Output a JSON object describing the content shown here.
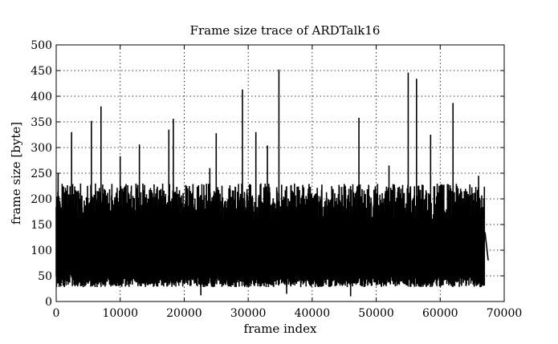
{
  "chart_data": {
    "type": "line",
    "title": "Frame size trace of ARDTalk16",
    "xlabel": "frame index",
    "ylabel": "frame size [byte]",
    "xlim": [
      0,
      70000
    ],
    "ylim": [
      0,
      500
    ],
    "x_ticks": [
      "0",
      "10000",
      "20000",
      "30000",
      "40000",
      "50000",
      "60000",
      "70000"
    ],
    "y_ticks": [
      "0",
      "50",
      "100",
      "150",
      "200",
      "250",
      "300",
      "350",
      "400",
      "450",
      "500"
    ],
    "x_tick_values": [
      0,
      10000,
      20000,
      30000,
      40000,
      50000,
      60000,
      70000
    ],
    "y_tick_values": [
      0,
      50,
      100,
      150,
      200,
      250,
      300,
      350,
      400,
      450,
      500
    ],
    "grid": true,
    "legend": "none",
    "series_color": "#000000",
    "x_end": 67500,
    "typical_low_range": [
      28,
      55
    ],
    "typical_high_range": [
      150,
      230
    ],
    "min_values": [
      {
        "x": 22600,
        "y": 12
      },
      {
        "x": 36000,
        "y": 15
      },
      {
        "x": 46000,
        "y": 10
      }
    ],
    "peaks": [
      {
        "x": 300,
        "y": 250
      },
      {
        "x": 2400,
        "y": 330
      },
      {
        "x": 5500,
        "y": 352
      },
      {
        "x": 7000,
        "y": 380
      },
      {
        "x": 10000,
        "y": 283
      },
      {
        "x": 13000,
        "y": 306
      },
      {
        "x": 17600,
        "y": 335
      },
      {
        "x": 18300,
        "y": 356
      },
      {
        "x": 24000,
        "y": 260
      },
      {
        "x": 25000,
        "y": 328
      },
      {
        "x": 29100,
        "y": 413
      },
      {
        "x": 31200,
        "y": 330
      },
      {
        "x": 33000,
        "y": 304
      },
      {
        "x": 34800,
        "y": 452
      },
      {
        "x": 47300,
        "y": 358
      },
      {
        "x": 52000,
        "y": 265
      },
      {
        "x": 55000,
        "y": 446
      },
      {
        "x": 56300,
        "y": 434
      },
      {
        "x": 58500,
        "y": 325
      },
      {
        "x": 62000,
        "y": 387
      },
      {
        "x": 66000,
        "y": 245
      }
    ],
    "tail": [
      {
        "x": 66200,
        "y": 45
      },
      {
        "x": 67000,
        "y": 135
      },
      {
        "x": 67500,
        "y": 80
      }
    ]
  }
}
